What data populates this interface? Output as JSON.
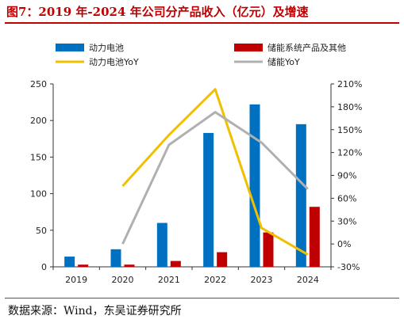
{
  "title": "图7：2019 年-2024 年公司分产品收入（亿元）及增速",
  "source": "数据来源：Wind，东吴证券研究所",
  "colors": {
    "power_bar": "#0070c0",
    "storage_bar": "#c00000",
    "power_yoy": "#f0c000",
    "storage_yoy": "#b0b0b0",
    "title": "#c00000"
  },
  "chart_data": {
    "type": "bar",
    "categories": [
      "2019",
      "2020",
      "2021",
      "2022",
      "2023",
      "2024"
    ],
    "series": [
      {
        "name": "动力电池",
        "type": "bar",
        "axis": "left",
        "values": [
          14,
          24,
          60,
          183,
          222,
          195
        ]
      },
      {
        "name": "储能系统产品及其他",
        "type": "bar",
        "axis": "left",
        "values": [
          3,
          3,
          8,
          20,
          47,
          82
        ]
      },
      {
        "name": "动力电池YoY",
        "type": "line",
        "axis": "right",
        "values": [
          null,
          76,
          143,
          203,
          21,
          -14
        ]
      },
      {
        "name": "储能YoY",
        "type": "line",
        "axis": "right",
        "values": [
          null,
          0,
          130,
          173,
          133,
          72
        ]
      }
    ],
    "y_left": {
      "lim": [
        0,
        250
      ],
      "ticks": [
        "0",
        "50",
        "100",
        "150",
        "200",
        "250"
      ]
    },
    "y_right": {
      "lim": [
        -30,
        210
      ],
      "ticks": [
        "-30%",
        "0%",
        "30%",
        "60%",
        "90%",
        "120%",
        "150%",
        "180%",
        "210%"
      ]
    },
    "legend_position": "top",
    "grid": false
  }
}
